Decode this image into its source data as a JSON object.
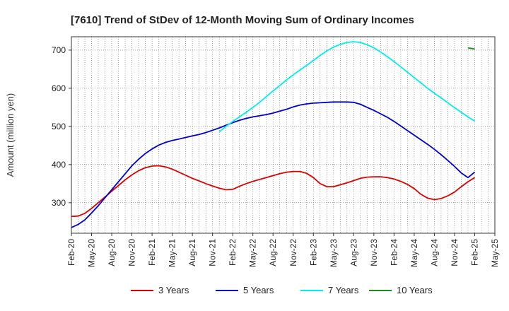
{
  "chart_data": {
    "type": "line",
    "title": "[7610]  Trend of StDev of 12-Month Moving Sum of Ordinary Incomes",
    "xlabel": "",
    "ylabel": "Amount (million yen)",
    "ylim": [
      220,
      735
    ],
    "yticks": [
      300,
      400,
      500,
      600,
      700
    ],
    "grid": true,
    "legend_position": "bottom",
    "categories": [
      "Feb-20",
      "May-20",
      "Aug-20",
      "Nov-20",
      "Feb-21",
      "May-21",
      "Aug-21",
      "Nov-21",
      "Feb-22",
      "May-22",
      "Aug-22",
      "Nov-22",
      "Feb-23",
      "May-23",
      "Aug-23",
      "Nov-23",
      "Feb-24",
      "May-24",
      "Aug-24",
      "Nov-24",
      "Feb-25",
      "May-25"
    ],
    "x_index_range": [
      0,
      63
    ],
    "series": [
      {
        "name": "3 Years",
        "color": "#dd0000",
        "x": [
          0,
          1,
          2,
          3,
          4,
          5,
          6,
          7,
          8,
          9,
          10,
          11,
          12,
          13,
          14,
          15,
          16,
          17,
          18,
          19,
          20,
          21,
          22,
          23,
          24,
          25,
          26,
          27,
          28,
          29,
          30,
          31,
          32,
          33,
          34,
          35,
          36,
          37,
          38,
          39,
          40,
          41,
          42,
          43,
          44,
          45,
          46,
          47,
          48,
          49,
          50,
          51,
          52,
          53,
          54,
          55,
          56,
          57,
          58,
          59,
          60
        ],
        "values": [
          264,
          265,
          272,
          285,
          300,
          315,
          330,
          345,
          360,
          373,
          384,
          392,
          396,
          397,
          394,
          388,
          380,
          372,
          364,
          357,
          350,
          344,
          338,
          334,
          335,
          343,
          350,
          356,
          361,
          366,
          371,
          376,
          380,
          382,
          382,
          377,
          366,
          350,
          342,
          342,
          347,
          352,
          358,
          364,
          367,
          368,
          368,
          366,
          362,
          356,
          348,
          337,
          322,
          312,
          308,
          311,
          318,
          328,
          342,
          355,
          366
        ]
      },
      {
        "name": "5 Years",
        "color": "#0000cc",
        "x": [
          0,
          1,
          2,
          3,
          4,
          5,
          6,
          7,
          8,
          9,
          10,
          11,
          12,
          13,
          14,
          15,
          16,
          17,
          18,
          19,
          20,
          21,
          22,
          23,
          24,
          25,
          26,
          27,
          28,
          29,
          30,
          31,
          32,
          33,
          34,
          35,
          36,
          37,
          38,
          39,
          40,
          41,
          42,
          43,
          44,
          45,
          46,
          47,
          48,
          49,
          50,
          51,
          52,
          53,
          54,
          55,
          56,
          57,
          58,
          59,
          60
        ],
        "values": [
          235,
          243,
          255,
          273,
          292,
          313,
          334,
          355,
          376,
          397,
          414,
          429,
          441,
          451,
          458,
          463,
          467,
          471,
          475,
          479,
          484,
          490,
          496,
          503,
          510,
          516,
          521,
          525,
          528,
          531,
          535,
          540,
          545,
          551,
          556,
          559,
          561,
          562,
          563,
          564,
          564,
          564,
          563,
          558,
          550,
          542,
          533,
          524,
          513,
          501,
          489,
          477,
          465,
          453,
          440,
          426,
          411,
          395,
          378,
          366,
          380
        ]
      },
      {
        "name": "7 Years",
        "color": "#00eeee",
        "x": [
          22,
          23,
          24,
          25,
          26,
          27,
          28,
          29,
          30,
          31,
          32,
          33,
          34,
          35,
          36,
          37,
          38,
          39,
          40,
          41,
          42,
          43,
          44,
          45,
          46,
          47,
          48,
          49,
          50,
          51,
          52,
          53,
          54,
          55,
          56,
          57,
          58,
          59,
          60
        ],
        "values": [
          486,
          500,
          513,
          525,
          537,
          550,
          563,
          578,
          593,
          607,
          622,
          635,
          648,
          660,
          673,
          686,
          698,
          708,
          715,
          720,
          722,
          720,
          714,
          706,
          695,
          683,
          670,
          656,
          642,
          628,
          614,
          600,
          587,
          575,
          562,
          549,
          537,
          525,
          514
        ]
      },
      {
        "name": "10 Years",
        "color": "#228822",
        "x": [
          59,
          60
        ],
        "values": [
          706,
          703
        ]
      }
    ]
  }
}
